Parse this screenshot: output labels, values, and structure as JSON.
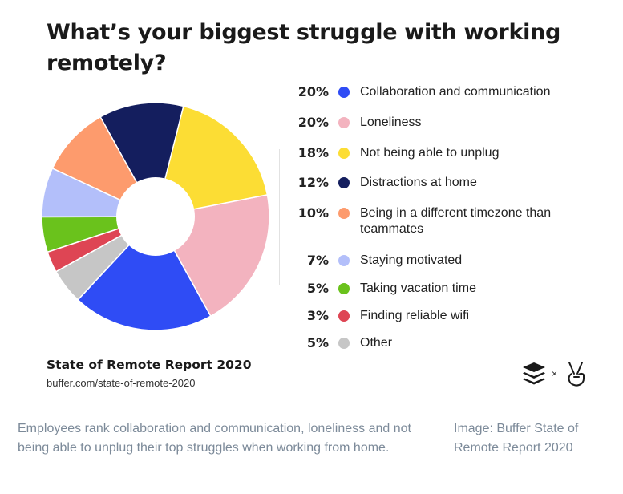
{
  "chart_data": {
    "type": "pie",
    "title": "What’s your biggest struggle with working remotely?",
    "donut": true,
    "slices": [
      {
        "label": "Collaboration and communication",
        "pct_label": "20%",
        "value": 20,
        "color": "#2f4cf5"
      },
      {
        "label": "Loneliness",
        "pct_label": "20%",
        "value": 20,
        "color": "#f3b3bf"
      },
      {
        "label": "Not being able to unplug",
        "pct_label": "18%",
        "value": 18,
        "color": "#fcdd34"
      },
      {
        "label": "Distractions at home",
        "pct_label": "12%",
        "value": 12,
        "color": "#141e5e"
      },
      {
        "label": "Being in a different timezone than teammates",
        "pct_label": "10%",
        "value": 10,
        "color": "#fd9b6d"
      },
      {
        "label": "Staying motivated",
        "pct_label": "7%",
        "value": 7,
        "color": "#b3bffa"
      },
      {
        "label": "Taking vacation time",
        "pct_label": "5%",
        "value": 5,
        "color": "#6ac21c"
      },
      {
        "label": "Finding reliable wifi",
        "pct_label": "3%",
        "value": 3,
        "color": "#de4554"
      },
      {
        "label": "Other",
        "pct_label": "5%",
        "value": 5,
        "color": "#c6c6c6"
      }
    ],
    "legend_position": "right"
  },
  "source": {
    "title": "State of Remote Report 2020",
    "url": "buffer.com/state-of-remote-2020"
  },
  "logos": {
    "left_icon": "buffer-logo-icon",
    "separator": "×",
    "right_icon": "peace-hand-logo-icon"
  },
  "caption": "Employees rank collaboration and communication, loneliness and not being able to unplug their top struggles when working from home.",
  "credit": "Image: Buffer State of Remote Report 2020"
}
